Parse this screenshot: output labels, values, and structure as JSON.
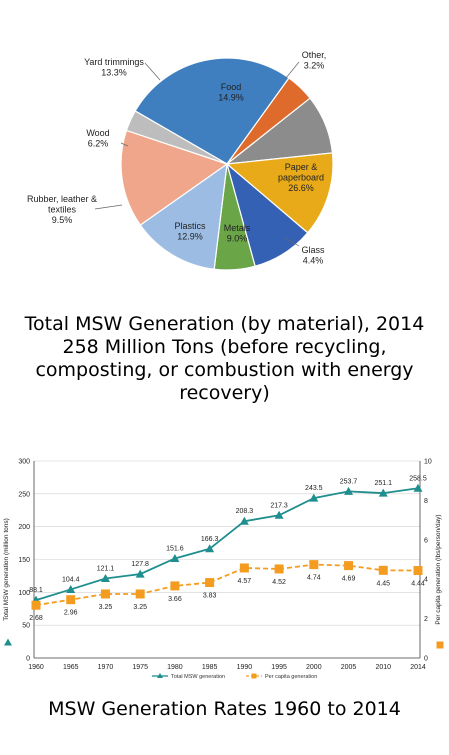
{
  "chart_data": [
    {
      "type": "pie",
      "title": "",
      "slices": [
        {
          "label": "Paper &\npaperboard",
          "value_label": "26.6%",
          "value": 26.6,
          "color": "#3f7fbf",
          "label_color": "#1a1a1a"
        },
        {
          "label": "Glass",
          "value_label": "4.4%",
          "value": 4.4,
          "color": "#de6b2c",
          "label_color": "#222"
        },
        {
          "label": "Metals",
          "value_label": "9.0%",
          "value": 9.0,
          "color": "#8c8c8c",
          "label_color": "#222"
        },
        {
          "label": "Plastics",
          "value_label": "12.9%",
          "value": 12.9,
          "color": "#e9aa1a",
          "label_color": "#222"
        },
        {
          "label": "Rubber, leather &\ntextiles",
          "value_label": "9.5%",
          "value": 9.5,
          "color": "#3461b3",
          "label_color": "#222"
        },
        {
          "label": "Wood",
          "value_label": "6.2%",
          "value": 6.2,
          "color": "#6aa548",
          "label_color": "#222"
        },
        {
          "label": "Yard trimmings",
          "value_label": "13.3%",
          "value": 13.3,
          "color": "#9dbce3",
          "label_color": "#222"
        },
        {
          "label": "Food",
          "value_label": "14.9%",
          "value": 14.9,
          "color": "#f0a68a",
          "label_color": "#222"
        },
        {
          "label": "Other,",
          "value_label": "3.2%",
          "value": 3.2,
          "color": "#bdbdbd",
          "label_color": "#222"
        }
      ]
    },
    {
      "type": "line",
      "title": "",
      "x": [
        1960,
        1965,
        1970,
        1975,
        1980,
        1985,
        1990,
        1995,
        2000,
        2005,
        2010,
        2014
      ],
      "x_tick_labels": [
        "1960",
        "1965",
        "1970",
        "1975",
        "1980",
        "1985",
        "1990",
        "1995",
        "2000",
        "2005",
        "2010",
        "2014"
      ],
      "series": [
        {
          "name": "Total MSW generation",
          "axis": "left",
          "color": "#1f8e8e",
          "values": [
            88.1,
            104.4,
            121.1,
            127.8,
            151.6,
            166.3,
            208.3,
            217.3,
            243.5,
            253.7,
            251.1,
            258.5
          ],
          "labels": [
            "88.1",
            "104.4",
            "121.1",
            "127.8",
            "151.6",
            "166.3",
            "208.3",
            "217.3",
            "243.5",
            "253.7",
            "251.1",
            "258.5"
          ]
        },
        {
          "name": "Per capita generation",
          "axis": "right",
          "color": "#f39c1f",
          "values": [
            2.68,
            2.96,
            3.25,
            3.25,
            3.66,
            3.83,
            4.57,
            4.52,
            4.74,
            4.69,
            4.45,
            4.44
          ],
          "labels": [
            "2.68",
            "2.96",
            "3.25",
            "3.25",
            "3.66",
            "3.83",
            "4.57",
            "4.52",
            "4.74",
            "4.69",
            "4.45",
            "4.44"
          ]
        }
      ],
      "ylabel_left": "Total MSW generation (million tons)",
      "ylabel_right": "Per capita generation (lbs/person/day)",
      "ylim_left": [
        0,
        300
      ],
      "yticks_left": [
        "0",
        "50",
        "100",
        "150",
        "200",
        "250",
        "300"
      ],
      "ylim_right": [
        0,
        10
      ],
      "yticks_right": [
        "0",
        "2",
        "4",
        "6",
        "8",
        "10"
      ],
      "grid": true,
      "legend_placement": "bottom"
    }
  ],
  "captions": {
    "pie": [
      "Total MSW Generation (by material), 2014",
      "258 Million Tons (before recycling,",
      "composting, or combustion with energy",
      "recovery)"
    ],
    "line": "MSW Generation Rates 1960 to 2014"
  }
}
